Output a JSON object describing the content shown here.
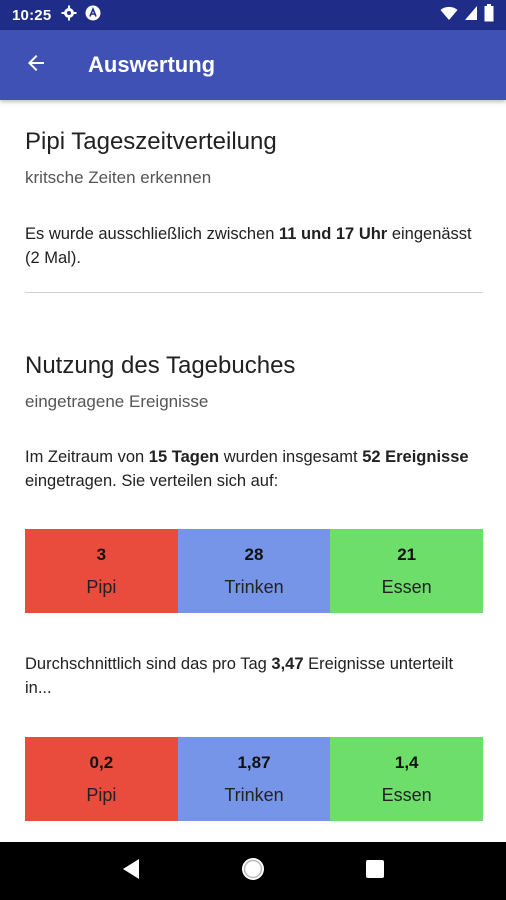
{
  "status_bar": {
    "time": "10:25"
  },
  "app_bar": {
    "title": "Auswertung"
  },
  "colors": {
    "app_bar": "#3f51b5",
    "status_bar": "#1f2d88",
    "pipi": "#e94b3c",
    "trinken": "#7795e8",
    "essen": "#6ede6a"
  },
  "section1": {
    "title": "Pipi Tageszeitverteilung",
    "subtitle": "kritsche Zeiten erkennen",
    "text_before": "Es wurde ausschließlich zwischen ",
    "text_bold": "11 und 17 Uhr",
    "text_after": " eingenässt (2 Mal)."
  },
  "section2": {
    "title": "Nutzung des Tagebuches",
    "subtitle": "eingetragene Ereignisse",
    "text_1": "Im Zeitraum von ",
    "bold_1": "15 Tagen",
    "text_2": " wurden insgesamt ",
    "bold_2": "52 Ereignisse",
    "text_3": " eingetragen. Sie verteilen sich auf:",
    "totals": [
      {
        "value": "3",
        "label": "Pipi"
      },
      {
        "value": "28",
        "label": "Trinken"
      },
      {
        "value": "21",
        "label": "Essen"
      }
    ],
    "avg_text_1": "Durchschnittlich sind das pro Tag ",
    "avg_bold": "3,47",
    "avg_text_2": " Ereignisse unterteilt in...",
    "averages": [
      {
        "value": "0,2",
        "label": "Pipi"
      },
      {
        "value": "1,87",
        "label": "Trinken"
      },
      {
        "value": "1,4",
        "label": "Essen"
      }
    ]
  },
  "icons": {
    "status_left": [
      "gear-icon",
      "app-a-icon"
    ],
    "status_right": [
      "wifi-icon",
      "signal-icon",
      "battery-icon"
    ],
    "back": "arrow-left-icon",
    "nav": [
      "back-triangle-icon",
      "home-circle-icon",
      "recents-square-icon"
    ]
  }
}
